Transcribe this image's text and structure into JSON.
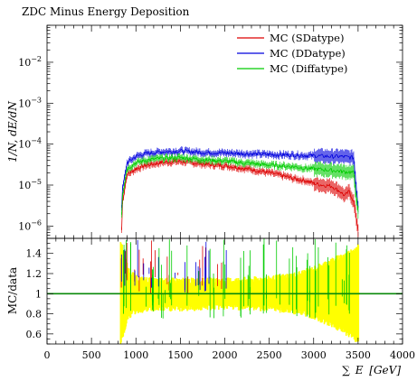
{
  "chart_data": [
    {
      "type": "line",
      "title": "ZDC Minus Energy Deposition",
      "ylabel": "1/N, dE/dN",
      "yscale": "log",
      "ylim": [
        5e-07,
        0.08
      ],
      "xlim": [
        0,
        4000
      ],
      "x_ticks": [
        0,
        500,
        1000,
        1500,
        2000,
        2500,
        3000,
        3500,
        4000
      ],
      "y_tick_labels": [
        {
          "value": 0.01,
          "mantissa": "10",
          "exp": "−2"
        },
        {
          "value": 0.001,
          "mantissa": "10",
          "exp": "−3"
        },
        {
          "value": 0.0001,
          "mantissa": "10",
          "exp": "−4"
        },
        {
          "value": 1e-05,
          "mantissa": "10",
          "exp": "−5"
        },
        {
          "value": 1e-06,
          "mantissa": "10",
          "exp": "−6"
        }
      ],
      "legend_position": "top-right",
      "x": [
        850,
        900,
        1000,
        1100,
        1200,
        1300,
        1400,
        1500,
        1600,
        1700,
        1800,
        1900,
        2000,
        2100,
        2200,
        2300,
        2400,
        2500,
        2600,
        2700,
        2800,
        2900,
        3000,
        3100,
        3200,
        3300,
        3350,
        3400,
        3450,
        3500
      ],
      "series": [
        {
          "name": "MC (SDatype)",
          "color": "#dd0000",
          "values": [
            4e-06,
            1.8e-05,
            2.5e-05,
            3e-05,
            3.3e-05,
            3.6e-05,
            3.7e-05,
            3.8e-05,
            3.6e-05,
            3.4e-05,
            3.2e-05,
            3.1e-05,
            3e-05,
            2.8e-05,
            2.6e-05,
            2.4e-05,
            2.2e-05,
            2e-05,
            1.8e-05,
            1.6e-05,
            1.4e-05,
            1.3e-05,
            1.1e-05,
            1e-05,
            9.5e-06,
            7e-06,
            5.5e-06,
            7e-06,
            4e-06,
            8e-07
          ]
        },
        {
          "name": "MC (DDatype)",
          "color": "#0000dd",
          "values": [
            8e-06,
            3.5e-05,
            5e-05,
            5.8e-05,
            6.2e-05,
            6.5e-05,
            6.6e-05,
            6.8e-05,
            6.6e-05,
            6.4e-05,
            6.2e-05,
            6.2e-05,
            6.1e-05,
            6e-05,
            5.9e-05,
            5.8e-05,
            5.7e-05,
            5.6e-05,
            5.5e-05,
            5.5e-05,
            5.4e-05,
            5.3e-05,
            5.2e-05,
            5.1e-05,
            5e-05,
            5e-05,
            4.9e-05,
            4.8e-05,
            4.7e-05,
            3e-06
          ]
        },
        {
          "name": "MC (Diffatype)",
          "color": "#00cc00",
          "values": [
            6e-06,
            2.5e-05,
            3.5e-05,
            4e-05,
            4.3e-05,
            4.5e-05,
            4.6e-05,
            4.7e-05,
            4.5e-05,
            4.3e-05,
            4.1e-05,
            4e-05,
            3.9e-05,
            3.7e-05,
            3.5e-05,
            3.4e-05,
            3.2e-05,
            3.1e-05,
            3e-05,
            2.9e-05,
            2.8e-05,
            2.6e-05,
            2.5e-05,
            2.4e-05,
            2.3e-05,
            2.2e-05,
            2.1e-05,
            2.1e-05,
            2e-05,
            2e-06
          ]
        }
      ]
    },
    {
      "type": "line",
      "ylabel": "MC/data",
      "xlabel_symbol": "∑",
      "xlabel_var": "E",
      "xlabel_unit": "[GeV]",
      "ylim": [
        0.5,
        1.55
      ],
      "xlim": [
        0,
        4000
      ],
      "x_ticks": [
        0,
        500,
        1000,
        1500,
        2000,
        2500,
        3000,
        3500,
        4000
      ],
      "y_ticks": [
        0.6,
        0.8,
        1,
        1.2,
        1.4
      ],
      "reference_line": 1,
      "uncertainty_band": {
        "color": "#ffff00",
        "x": [
          800,
          850,
          900,
          1000,
          1200,
          1500,
          2000,
          2500,
          2800,
          3000,
          3200,
          3400,
          3500
        ],
        "lower": [
          0.5,
          0.62,
          0.8,
          0.86,
          0.88,
          0.88,
          0.9,
          0.88,
          0.85,
          0.8,
          0.72,
          0.62,
          0.55
        ],
        "upper": [
          1.55,
          1.4,
          1.22,
          1.12,
          1.1,
          1.1,
          1.1,
          1.12,
          1.16,
          1.22,
          1.3,
          1.38,
          1.45
        ]
      },
      "series": [
        {
          "name": "MC (SDatype)",
          "color": "#dd0000"
        },
        {
          "name": "MC (DDatype)",
          "color": "#0000dd"
        },
        {
          "name": "MC (Diffatype)",
          "color": "#00cc00"
        }
      ]
    }
  ]
}
